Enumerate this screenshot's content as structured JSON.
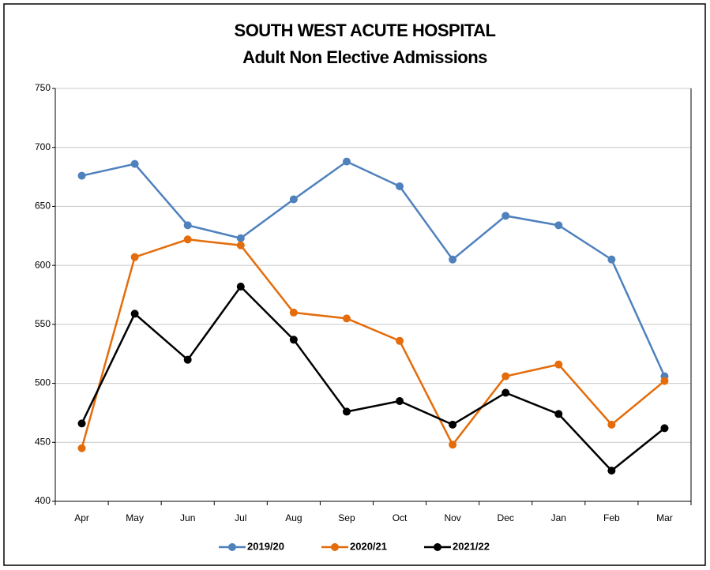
{
  "chart_data": {
    "type": "line",
    "title": "SOUTH WEST ACUTE HOSPITAL",
    "subtitle": "Adult Non Elective Admissions",
    "categories": [
      "Apr",
      "May",
      "Jun",
      "Jul",
      "Aug",
      "Sep",
      "Oct",
      "Nov",
      "Dec",
      "Jan",
      "Feb",
      "Mar"
    ],
    "series": [
      {
        "name": "2019/20",
        "color": "#4f81bd",
        "values": [
          676,
          686,
          634,
          623,
          656,
          688,
          667,
          605,
          642,
          634,
          605,
          506
        ]
      },
      {
        "name": "2020/21",
        "color": "#e46c0a",
        "values": [
          445,
          607,
          622,
          617,
          560,
          555,
          536,
          448,
          506,
          516,
          465,
          502
        ]
      },
      {
        "name": "2021/22",
        "color": "#000000",
        "values": [
          466,
          559,
          520,
          582,
          537,
          476,
          485,
          465,
          492,
          474,
          426,
          462
        ]
      }
    ],
    "ylim": [
      400,
      750
    ],
    "yticks": [
      400,
      450,
      500,
      550,
      600,
      650,
      700,
      750
    ],
    "grid": true,
    "legend": "bottom"
  }
}
